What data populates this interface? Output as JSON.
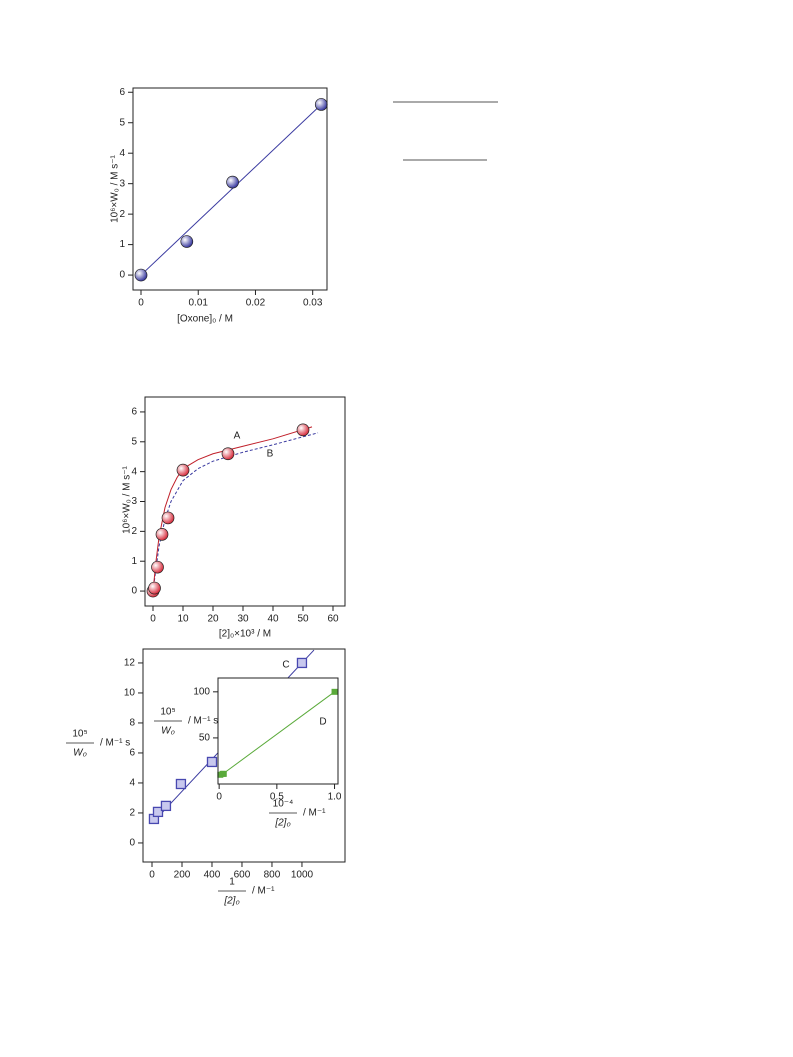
{
  "chart_data": [
    {
      "type": "scatter",
      "xlabel": "[Oxone]₀ / M",
      "ylabel": "10⁶×W₀ / M s⁻¹",
      "xlim": [
        -0.0014,
        0.0325
      ],
      "ylim": [
        -0.49,
        6.14
      ],
      "xticks": [
        0,
        0.01,
        0.02,
        0.03
      ],
      "yticks": [
        0,
        1,
        2,
        3,
        4,
        5,
        6
      ],
      "series": [
        {
          "color": "#3a3aa0",
          "style": "solid",
          "x": [
            0,
            0.0315
          ],
          "values": [
            0,
            5.6
          ]
        },
        {
          "color": "#3a3aa0",
          "marker": "sphere",
          "x": [
            0,
            0.008,
            0.016,
            0.0315
          ],
          "values": [
            0,
            1.1,
            3.05,
            5.6
          ]
        }
      ]
    },
    {
      "type": "scatter",
      "xlabel": "[2]₀×10³ / M",
      "ylabel": "10⁶×W₀ / M s⁻¹",
      "xlim": [
        -2.67,
        64
      ],
      "ylim": [
        -0.5,
        6.5
      ],
      "xticks": [
        0,
        10,
        20,
        30,
        40,
        50,
        60
      ],
      "yticks": [
        0,
        1,
        2,
        3,
        4,
        5,
        6
      ],
      "series": [
        {
          "name": "B",
          "color": "#3a3aa0",
          "style": "dashed",
          "x": [
            0,
            2,
            4,
            6,
            10,
            15,
            20,
            30,
            40,
            55
          ],
          "values": [
            0,
            1.5,
            2.4,
            3.0,
            3.7,
            4.1,
            4.35,
            4.65,
            4.9,
            5.3
          ]
        },
        {
          "name": "A",
          "color": "#c0202a",
          "style": "solid",
          "x": [
            0,
            1,
            2,
            4,
            6,
            8,
            10,
            15,
            20,
            30,
            40,
            53
          ],
          "values": [
            0,
            1.0,
            1.8,
            2.8,
            3.4,
            3.8,
            4.1,
            4.4,
            4.6,
            4.85,
            5.1,
            5.5
          ]
        },
        {
          "color": "#d83040",
          "marker": "sphere",
          "x": [
            0,
            0.5,
            1.5,
            3,
            5,
            10,
            25,
            50
          ],
          "values": [
            0,
            0.1,
            0.8,
            1.9,
            2.45,
            4.05,
            4.6,
            5.4
          ]
        }
      ]
    },
    {
      "type": "scatter",
      "xlabel": {
        "numerator": "1",
        "denominator": "[2]₀",
        "unit": "/ M⁻¹"
      },
      "ylabel": {
        "numerator": "10⁵",
        "denominator": "W₀",
        "unit": "/ M⁻¹ s"
      },
      "xlim": [
        -60,
        1287
      ],
      "ylim": [
        -1.27,
        12.93
      ],
      "xticks": [
        0,
        200,
        400,
        600,
        800,
        1000
      ],
      "yticks": [
        0,
        2,
        4,
        6,
        8,
        10,
        12
      ],
      "series": [
        {
          "name": "C",
          "color": "#3a3aa0",
          "style": "solid",
          "x": [
            0,
            1080
          ],
          "values": [
            1.3,
            12.86
          ]
        },
        {
          "color": "#4848b0",
          "marker": "square",
          "x": [
            13,
            40,
            93,
            193,
            400,
            1000
          ],
          "values": [
            1.6,
            2.07,
            2.47,
            3.93,
            5.4,
            12
          ]
        }
      ]
    },
    {
      "type": "scatter",
      "xlabel": {
        "numerator": "10⁻⁴",
        "denominator": "[2]₀",
        "unit": "/ M⁻¹"
      },
      "ylabel": {
        "numerator": "10⁵",
        "denominator": "W₀",
        "unit": "/ M⁻¹ s"
      },
      "xlim": [
        -0.01,
        1.03
      ],
      "ylim": [
        0,
        115
      ],
      "xticks": [
        0,
        0.5,
        {
          "value": 1,
          "label": "1.0"
        }
      ],
      "yticks": [
        50,
        100
      ],
      "series": [
        {
          "name": "D",
          "color": "#5aaa3a",
          "style": "solid",
          "x": [
            0,
            1
          ],
          "values": [
            8,
            100
          ]
        },
        {
          "color": "#5aaa3a",
          "marker": "square",
          "x": [
            0.01,
            0.03,
            0.04,
            1
          ],
          "values": [
            10,
            11,
            11,
            100
          ]
        }
      ]
    }
  ]
}
